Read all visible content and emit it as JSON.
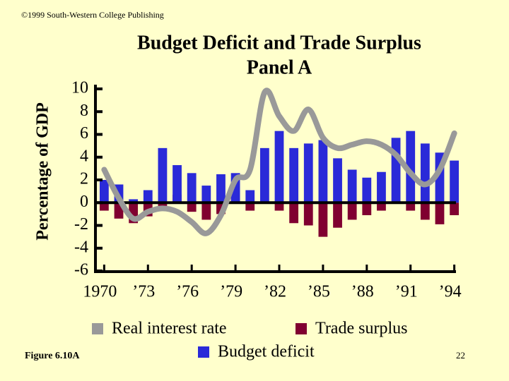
{
  "copyright": "©1999 South-Western College Publishing",
  "figure_label": "Figure 6.10A",
  "page_number": "22",
  "chart_data": {
    "type": "bar",
    "title": "Budget Deficit and Trade Surplus",
    "subtitle": "Panel A",
    "y_label": "Percentage of GDP",
    "x": [
      1970,
      1971,
      1972,
      1973,
      1974,
      1975,
      1976,
      1977,
      1978,
      1979,
      1980,
      1981,
      1982,
      1983,
      1984,
      1985,
      1986,
      1987,
      1988,
      1989,
      1990,
      1991,
      1992,
      1993,
      1994
    ],
    "series": [
      {
        "name": "Real interest rate",
        "type": "line",
        "color": "#999999",
        "values": [
          2.9,
          0.4,
          -1.4,
          -0.8,
          -0.5,
          -0.8,
          -1.7,
          -2.7,
          -1.1,
          2.0,
          2.9,
          9.7,
          7.6,
          6.3,
          8.2,
          5.7,
          4.8,
          5.1,
          5.4,
          5.1,
          4.2,
          2.6,
          1.6,
          2.9,
          6.1
        ]
      },
      {
        "name": "Trade surplus",
        "color": "#800030",
        "values": [
          -0.7,
          -1.4,
          -1.8,
          -1.2,
          -0.6,
          0.7,
          -0.8,
          -1.5,
          -1.0,
          1.0,
          -0.7,
          0,
          -0.7,
          -1.8,
          -2.0,
          -3.0,
          -2.2,
          -1.5,
          -1.1,
          -0.7,
          0,
          -0.7,
          -1.5,
          -1.9,
          -1.1
        ]
      },
      {
        "name": "Budget deficit",
        "color": "#2a2ad8",
        "values": [
          2.0,
          1.6,
          0.3,
          1.1,
          4.8,
          3.3,
          2.6,
          1.5,
          2.5,
          2.6,
          1.1,
          4.8,
          6.3,
          4.8,
          5.2,
          5.5,
          3.9,
          2.9,
          2.2,
          2.7,
          5.7,
          6.3,
          5.2,
          4.4,
          3.7
        ]
      }
    ],
    "xlim": [
      1969.4,
      1994.6
    ],
    "xticks": [
      1970,
      {
        "value": 1973,
        "label": "’73"
      },
      {
        "value": 1976,
        "label": "’76"
      },
      {
        "value": 1979,
        "label": "’79"
      },
      {
        "value": 1982,
        "label": "’82"
      },
      {
        "value": 1985,
        "label": "’85"
      },
      {
        "value": 1988,
        "label": "’88"
      },
      {
        "value": 1991,
        "label": "’91"
      },
      {
        "value": 1994,
        "label": "’94"
      }
    ],
    "ylim": [
      -6,
      10
    ],
    "yticks": [
      -6,
      -4,
      -2,
      0,
      2,
      4,
      6,
      8,
      10
    ]
  }
}
